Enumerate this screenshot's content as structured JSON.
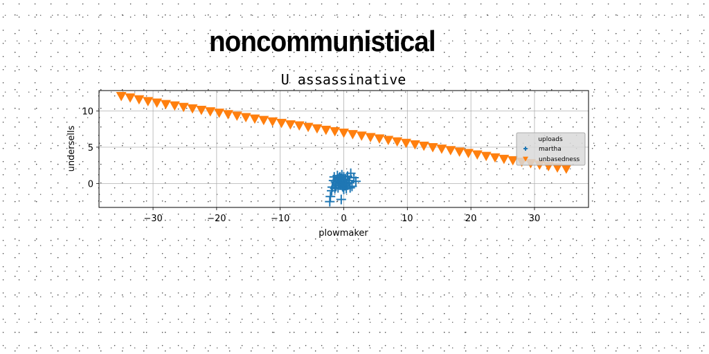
{
  "suptitle": "noncommunistical",
  "colors": {
    "series1": "#1f77b4",
    "series2": "#ff7f0e",
    "grid": "#b0b0b0"
  },
  "chart_data": {
    "type": "scatter",
    "title": "U assassinative",
    "xlabel": "plowmaker",
    "ylabel": "undersells",
    "xlim": [
      -38.5,
      38.5
    ],
    "ylim": [
      -3.3,
      12.8
    ],
    "xticks": [
      -30,
      -20,
      -10,
      0,
      10,
      20,
      30
    ],
    "xtick_labels": [
      "−30",
      "−20",
      "−10",
      "0",
      "10",
      "20",
      "30"
    ],
    "yticks": [
      0,
      5,
      10
    ],
    "ytick_labels": [
      "0",
      "5",
      "10"
    ],
    "grid": true,
    "legend": {
      "title": "uploads",
      "placement": "right"
    },
    "series": [
      {
        "name": "martha",
        "marker": "plus",
        "color": "#1f77b4",
        "points": [
          [
            -2.2,
            -2.5
          ],
          [
            -2.1,
            -1.8
          ],
          [
            -1.9,
            -1.0
          ],
          [
            -1.8,
            -0.5
          ],
          [
            -1.6,
            0.4
          ],
          [
            -1.5,
            0.9
          ],
          [
            -1.3,
            0.2
          ],
          [
            -1.2,
            -0.3
          ],
          [
            -1.0,
            0.6
          ],
          [
            -1.0,
            1.1
          ],
          [
            -0.9,
            -0.6
          ],
          [
            -0.8,
            0.0
          ],
          [
            -0.7,
            0.8
          ],
          [
            -0.6,
            0.3
          ],
          [
            -0.5,
            -0.2
          ],
          [
            -0.4,
            0.7
          ],
          [
            -0.3,
            1.2
          ],
          [
            -0.3,
            0.1
          ],
          [
            -0.2,
            -0.4
          ],
          [
            -0.1,
            0.5
          ],
          [
            0.0,
            -0.8
          ],
          [
            0.0,
            0.9
          ],
          [
            0.1,
            0.2
          ],
          [
            0.2,
            -0.3
          ],
          [
            0.3,
            0.6
          ],
          [
            0.4,
            -0.7
          ],
          [
            0.5,
            0.0
          ],
          [
            0.6,
            1.0
          ],
          [
            0.8,
            0.4
          ],
          [
            1.0,
            -0.6
          ],
          [
            1.1,
            1.4
          ],
          [
            1.3,
            -0.4
          ],
          [
            1.6,
            0.8
          ],
          [
            1.9,
            0.3
          ],
          [
            -0.4,
            -2.2
          ],
          [
            -1.4,
            -0.7
          ],
          [
            0.9,
            0.1
          ],
          [
            -0.6,
            0.9
          ],
          [
            0.3,
            -0.1
          ],
          [
            -0.1,
            -0.5
          ]
        ]
      },
      {
        "name": "unbasedness",
        "marker": "triangle_down",
        "color": "#ff7f0e",
        "points": [
          [
            -35.0,
            12.0
          ],
          [
            -33.6,
            11.8
          ],
          [
            -32.2,
            11.55
          ],
          [
            -30.8,
            11.3
          ],
          [
            -29.4,
            11.1
          ],
          [
            -28.0,
            10.9
          ],
          [
            -26.6,
            10.7
          ],
          [
            -25.2,
            10.5
          ],
          [
            -23.8,
            10.3
          ],
          [
            -22.4,
            10.1
          ],
          [
            -21.0,
            9.9
          ],
          [
            -19.6,
            9.7
          ],
          [
            -18.2,
            9.5
          ],
          [
            -16.8,
            9.3
          ],
          [
            -15.4,
            9.1
          ],
          [
            -14.0,
            8.9
          ],
          [
            -12.6,
            8.7
          ],
          [
            -11.2,
            8.5
          ],
          [
            -9.8,
            8.3
          ],
          [
            -8.4,
            8.1
          ],
          [
            -7.0,
            7.95
          ],
          [
            -5.6,
            7.75
          ],
          [
            -4.2,
            7.55
          ],
          [
            -2.8,
            7.35
          ],
          [
            -1.4,
            7.15
          ],
          [
            0.0,
            6.95
          ],
          [
            1.4,
            6.75
          ],
          [
            2.8,
            6.55
          ],
          [
            4.2,
            6.35
          ],
          [
            5.6,
            6.15
          ],
          [
            7.0,
            5.95
          ],
          [
            8.4,
            5.75
          ],
          [
            9.8,
            5.55
          ],
          [
            11.2,
            5.35
          ],
          [
            12.6,
            5.15
          ],
          [
            14.0,
            4.95
          ],
          [
            15.4,
            4.75
          ],
          [
            16.8,
            4.55
          ],
          [
            18.2,
            4.35
          ],
          [
            19.6,
            4.15
          ],
          [
            21.0,
            3.95
          ],
          [
            22.4,
            3.75
          ],
          [
            23.8,
            3.55
          ],
          [
            25.2,
            3.35
          ],
          [
            26.6,
            3.15
          ],
          [
            28.0,
            2.95
          ],
          [
            29.4,
            2.75
          ],
          [
            30.8,
            2.55
          ],
          [
            32.2,
            2.35
          ],
          [
            33.6,
            2.15
          ],
          [
            35.0,
            2.0
          ]
        ]
      }
    ]
  }
}
